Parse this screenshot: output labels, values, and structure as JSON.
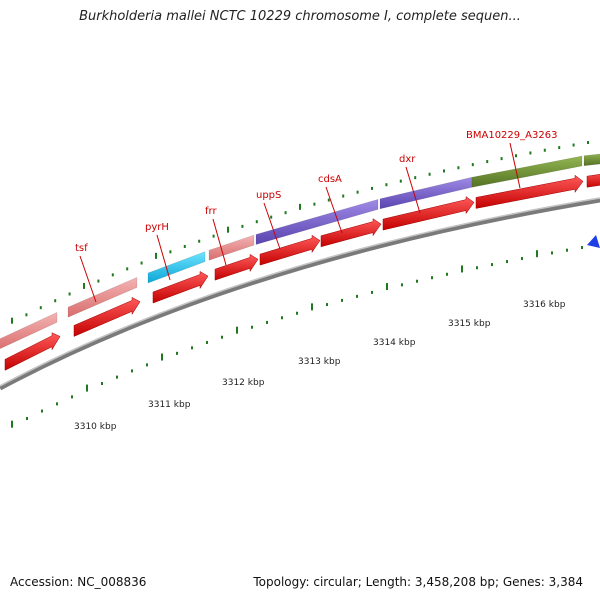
{
  "title": "Burkholderia mallei NCTC 10229 chromosome I, complete sequen...",
  "footer": {
    "accession": "Accession: NC_008836",
    "summary": "Topology: circular; Length: 3,458,208 bp; Genes: 3,384"
  },
  "colors": {
    "backbone": "#8c8c8c",
    "cds": "#ee0000",
    "tick": "#1f7a1f",
    "label_red": "#cc0000",
    "gene_pink": "#e88a8a",
    "gene_cyan": "#19c3ee",
    "gene_purple": "#7a60c8",
    "gene_olive": "#6f8f2f"
  },
  "kbp_labels": [
    "3310 kbp",
    "3311 kbp",
    "3312 kbp",
    "3313 kbp",
    "3314 kbp",
    "3315 kbp",
    "3316 kbp"
  ],
  "gene_labels": [
    "tsf",
    "pyrH",
    "frr",
    "uppS",
    "cdsA",
    "dxr",
    "BMA10229_A3263"
  ]
}
